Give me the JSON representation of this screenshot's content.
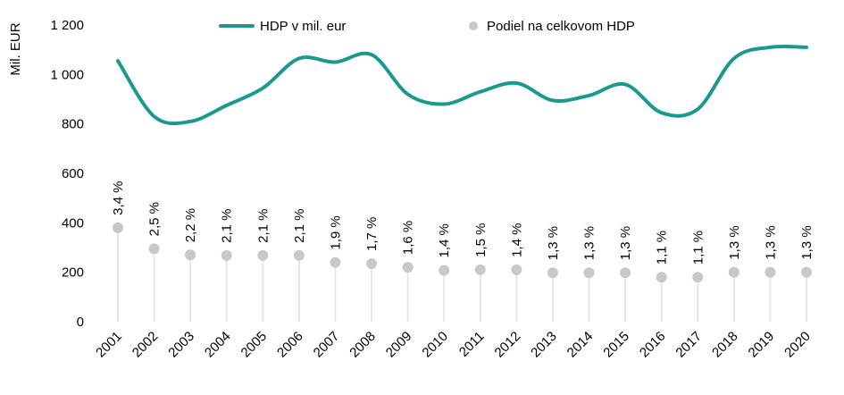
{
  "chart_data": {
    "type": "line",
    "xlabel": "",
    "ylabel": "Mil. EUR",
    "ylim": [
      0,
      1200
    ],
    "yticks": [
      "0",
      "200",
      "400",
      "600",
      "800",
      "1 000",
      "1 200"
    ],
    "ytick_values": [
      0,
      200,
      400,
      600,
      800,
      1000,
      1200
    ],
    "grid": false,
    "legend_position": "top-center",
    "categories": [
      "2001",
      "2002",
      "2003",
      "2004",
      "2005",
      "2006",
      "2007",
      "2008",
      "2009",
      "2010",
      "2011",
      "2012",
      "2013",
      "2014",
      "2015",
      "2016",
      "2017",
      "2018",
      "2019",
      "2020"
    ],
    "series": [
      {
        "name": "HDP v mil. eur",
        "type": "line",
        "color": "#1a9a8e",
        "values": [
          1055,
          830,
          810,
          875,
          945,
          1065,
          1050,
          1080,
          920,
          880,
          930,
          965,
          895,
          915,
          960,
          845,
          860,
          1065,
          1110,
          1110
        ]
      },
      {
        "name": "Podiel na celkovom HDP",
        "type": "scatter",
        "color": "#c8c8c8",
        "values": [
          380,
          295,
          270,
          268,
          268,
          268,
          240,
          235,
          220,
          208,
          210,
          210,
          198,
          198,
          198,
          180,
          180,
          200,
          200,
          200
        ],
        "labels": [
          "3,4 %",
          "2,5 %",
          "2,2 %",
          "2,1 %",
          "2,1 %",
          "2,1 %",
          "1,9 %",
          "1,7 %",
          "1,6 %",
          "1,4 %",
          "1,5 %",
          "1,4 %",
          "1,3 %",
          "1,3 %",
          "1,3 %",
          "1,1 %",
          "1,1 %",
          "1,3 %",
          "1,3 %",
          "1,3 %"
        ]
      }
    ]
  }
}
